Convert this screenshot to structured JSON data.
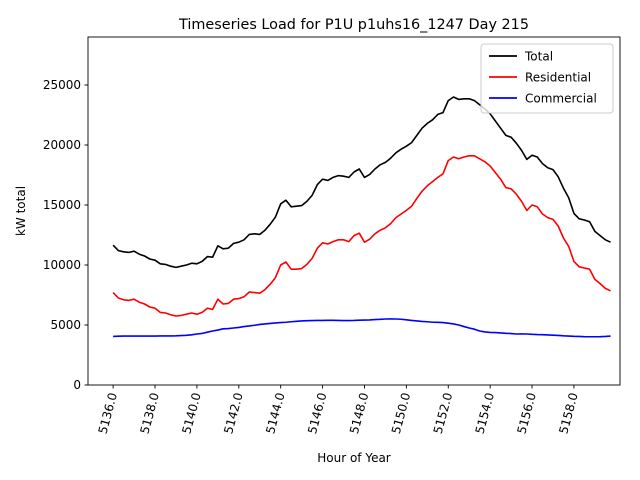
{
  "chart_data": {
    "type": "line",
    "title": "Timeseries Load for P1U p1uhs16_1247  Day 215",
    "xlabel": "Hour of Year",
    "ylabel": "kW total",
    "xlim": [
      5134.8,
      5160.2
    ],
    "ylim": [
      0,
      29000
    ],
    "xticks": [
      5136,
      5138,
      5140,
      5142,
      5144,
      5146,
      5148,
      5150,
      5152,
      5154,
      5156,
      5158
    ],
    "xtick_labels": [
      "5136.0",
      "5138.0",
      "5140.0",
      "5142.0",
      "5144.0",
      "5146.0",
      "5148.0",
      "5150.0",
      "5152.0",
      "5154.0",
      "5156.0",
      "5158.0"
    ],
    "yticks": [
      0,
      5000,
      10000,
      15000,
      20000,
      25000
    ],
    "ytick_labels": [
      "0",
      "5000",
      "10000",
      "15000",
      "20000",
      "25000"
    ],
    "legend_position": "top-right",
    "x": [
      5136.0,
      5136.25,
      5136.5,
      5136.75,
      5137.0,
      5137.25,
      5137.5,
      5137.75,
      5138.0,
      5138.25,
      5138.5,
      5138.75,
      5139.0,
      5139.25,
      5139.5,
      5139.75,
      5140.0,
      5140.25,
      5140.5,
      5140.75,
      5141.0,
      5141.25,
      5141.5,
      5141.75,
      5142.0,
      5142.25,
      5142.5,
      5142.75,
      5143.0,
      5143.25,
      5143.5,
      5143.75,
      5144.0,
      5144.25,
      5144.5,
      5144.75,
      5145.0,
      5145.25,
      5145.5,
      5145.75,
      5146.0,
      5146.25,
      5146.5,
      5146.75,
      5147.0,
      5147.25,
      5147.5,
      5147.75,
      5148.0,
      5148.25,
      5148.5,
      5148.75,
      5149.0,
      5149.25,
      5149.5,
      5149.75,
      5150.0,
      5150.25,
      5150.5,
      5150.75,
      5151.0,
      5151.25,
      5151.5,
      5151.75,
      5152.0,
      5152.25,
      5152.5,
      5152.75,
      5153.0,
      5153.25,
      5153.5,
      5153.75,
      5154.0,
      5154.25,
      5154.5,
      5154.75,
      5155.0,
      5155.25,
      5155.5,
      5155.75,
      5156.0,
      5156.25,
      5156.5,
      5156.75,
      5157.0,
      5157.25,
      5157.5,
      5157.75,
      5158.0,
      5158.25,
      5158.5,
      5158.75,
      5159.0,
      5159.25,
      5159.5,
      5159.75
    ],
    "series": [
      {
        "name": "Total",
        "color": "#000000",
        "values": [
          11650,
          11200,
          11100,
          11050,
          11150,
          10900,
          10750,
          10500,
          10400,
          10100,
          10050,
          9900,
          9800,
          9900,
          10000,
          10150,
          10100,
          10300,
          10700,
          10650,
          11600,
          11350,
          11400,
          11800,
          11900,
          12100,
          12550,
          12600,
          12550,
          12900,
          13400,
          14000,
          15100,
          15400,
          14850,
          14900,
          14950,
          15300,
          15800,
          16700,
          17150,
          17050,
          17300,
          17450,
          17400,
          17300,
          17750,
          18000,
          17300,
          17550,
          18000,
          18350,
          18550,
          18900,
          19350,
          19650,
          19900,
          20200,
          20800,
          21400,
          21800,
          22100,
          22550,
          22700,
          23700,
          24000,
          23800,
          23850,
          23850,
          23700,
          23350,
          23000,
          22600,
          22000,
          21400,
          20800,
          20650,
          20150,
          19550,
          18800,
          19150,
          19000,
          18450,
          18100,
          17950,
          17350,
          16400,
          15600,
          14300,
          13850,
          13750,
          13600,
          12800,
          12450,
          12100,
          11900
        ]
      },
      {
        "name": "Residential",
        "color": "#ff0000",
        "values": [
          7700,
          7250,
          7100,
          7050,
          7150,
          6900,
          6750,
          6500,
          6400,
          6050,
          6000,
          5850,
          5750,
          5800,
          5900,
          6000,
          5900,
          6050,
          6400,
          6300,
          7150,
          6750,
          6800,
          7150,
          7200,
          7350,
          7750,
          7700,
          7650,
          7950,
          8400,
          8950,
          10000,
          10250,
          9650,
          9650,
          9700,
          10050,
          10550,
          11400,
          11850,
          11750,
          11950,
          12100,
          12100,
          11950,
          12450,
          12650,
          11900,
          12150,
          12600,
          12900,
          13100,
          13450,
          13950,
          14250,
          14550,
          14900,
          15550,
          16150,
          16600,
          16950,
          17300,
          17600,
          18700,
          19000,
          18850,
          19000,
          19100,
          19100,
          18850,
          18600,
          18250,
          17700,
          17150,
          16450,
          16350,
          15900,
          15300,
          14550,
          15000,
          14850,
          14250,
          13950,
          13800,
          13250,
          12250,
          11550,
          10300,
          9850,
          9750,
          9650,
          8800,
          8450,
          8050,
          7850
        ]
      },
      {
        "name": "Commercial",
        "color": "#0000ff",
        "values": [
          4050,
          4070,
          4080,
          4080,
          4080,
          4080,
          4080,
          4080,
          4080,
          4090,
          4090,
          4090,
          4100,
          4120,
          4140,
          4180,
          4250,
          4300,
          4400,
          4500,
          4580,
          4680,
          4700,
          4750,
          4800,
          4870,
          4920,
          4980,
          5050,
          5090,
          5130,
          5170,
          5200,
          5230,
          5270,
          5310,
          5340,
          5360,
          5370,
          5380,
          5380,
          5390,
          5390,
          5380,
          5370,
          5370,
          5380,
          5400,
          5410,
          5420,
          5450,
          5470,
          5500,
          5510,
          5500,
          5480,
          5430,
          5380,
          5340,
          5300,
          5270,
          5230,
          5220,
          5200,
          5150,
          5090,
          5000,
          4870,
          4750,
          4650,
          4500,
          4420,
          4380,
          4370,
          4340,
          4310,
          4290,
          4250,
          4260,
          4250,
          4220,
          4200,
          4190,
          4170,
          4150,
          4130,
          4100,
          4080,
          4060,
          4050,
          4030,
          4020,
          4020,
          4030,
          4050,
          4080
        ]
      }
    ]
  }
}
